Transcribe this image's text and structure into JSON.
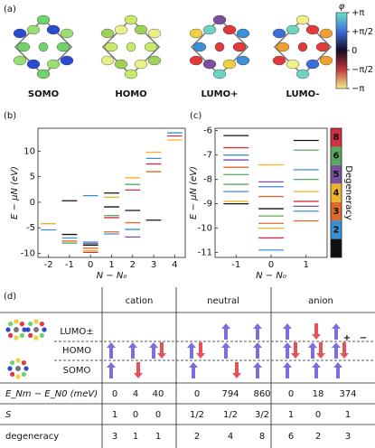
{
  "panel_labels": [
    "(a)",
    "(b)",
    "(c)",
    "(d)"
  ],
  "orbitals": [
    "SOMO",
    "HOMO",
    "LUMO+",
    "LUMO-"
  ],
  "colorbar": {
    "label": "φ",
    "ticks": [
      "+π",
      "+π/2",
      "0",
      "−π/2",
      "−π"
    ]
  },
  "chart_data": [
    {
      "type": "levels",
      "xlabel": "N − N₀",
      "ylabel": "E − μN (eV)",
      "xlim": [
        -2.5,
        4.5
      ],
      "xticks": [
        -2,
        -1,
        0,
        1,
        2,
        3,
        4
      ],
      "ylim": [
        -10.8,
        14.5
      ],
      "yticks": [
        -10,
        -5,
        0,
        5,
        10
      ],
      "series": [
        {
          "color": "#111111",
          "x": [
            -1,
            -1,
            0,
            1,
            1,
            2,
            3
          ],
          "values": [
            0.3,
            -6.3,
            -8.4,
            1.8,
            -0.9,
            -1.6,
            -3.5
          ]
        },
        {
          "color": "#3a8fd6",
          "x": [
            -2,
            -1,
            0,
            0,
            1,
            2,
            3,
            4
          ],
          "values": [
            -5.4,
            -7.0,
            -7.8,
            1.3,
            -6.2,
            -5.3,
            8.6,
            13.6
          ]
        },
        {
          "color": "#e0692a",
          "x": [
            -1,
            0,
            1,
            2,
            3
          ],
          "values": [
            -7.6,
            -9.0,
            -5.8,
            -4.0,
            6.0
          ]
        },
        {
          "color": "#f0b429",
          "x": [
            -2,
            0,
            1,
            2,
            3,
            4
          ],
          "values": [
            -4.2,
            -9.5,
            1.0,
            4.8,
            9.8,
            12.2
          ]
        },
        {
          "color": "#7b4fa0",
          "x": [
            0,
            2
          ],
          "values": [
            -8.1,
            -6.8
          ]
        },
        {
          "color": "#5aa860",
          "x": [
            -1,
            1,
            2
          ],
          "values": [
            -8.0,
            -2.6,
            3.5
          ]
        },
        {
          "color": "#d03040",
          "x": [
            0,
            1,
            2,
            3,
            4
          ],
          "values": [
            -9.8,
            -3.0,
            2.4,
            7.5,
            13.0
          ]
        }
      ]
    },
    {
      "type": "levels",
      "xlabel": "N − N₀",
      "ylabel": "E − μN (eV)",
      "legend_title": "Degeneracy",
      "xlim": [
        -1.6,
        1.6
      ],
      "xticks": [
        -1,
        0,
        1
      ],
      "ylim": [
        -11.2,
        -5.9
      ],
      "yticks": [
        -11,
        -10,
        -9,
        -8,
        -7,
        -6
      ],
      "series": [
        {
          "name": "1",
          "color": "#111111",
          "x": [
            -1,
            -1,
            0,
            1
          ],
          "values": [
            -6.2,
            -9.0,
            -9.2,
            -6.4
          ]
        },
        {
          "name": "2",
          "color": "#3a8fd6",
          "x": [
            -1,
            -1,
            0,
            0,
            1,
            1
          ],
          "values": [
            -7.0,
            -8.5,
            -10.9,
            -8.3,
            -7.6,
            -9.3
          ]
        },
        {
          "name": "3",
          "color": "#e0692a",
          "x": [
            -1,
            0,
            0,
            1
          ],
          "values": [
            -7.5,
            -9.8,
            -8.7,
            -9.7
          ]
        },
        {
          "name": "4",
          "color": "#f0b429",
          "x": [
            -1,
            0,
            0,
            1
          ],
          "values": [
            -8.9,
            -7.4,
            -10.0,
            -8.5
          ]
        },
        {
          "name": "5",
          "color": "#7b4fa0",
          "x": [
            -1,
            0,
            1
          ],
          "values": [
            -7.2,
            -8.1,
            -9.1
          ]
        },
        {
          "name": "6",
          "color": "#5aa860",
          "x": [
            -1,
            -1,
            0,
            1,
            1
          ],
          "values": [
            -7.8,
            -8.2,
            -9.5,
            -6.8,
            -8.0
          ]
        },
        {
          "name": "8",
          "color": "#d03040",
          "x": [
            -1,
            0,
            1
          ],
          "values": [
            -6.7,
            -10.4,
            -8.9
          ]
        }
      ]
    }
  ],
  "table": {
    "groups": [
      "cation",
      "neutral",
      "anion"
    ],
    "orbital_labels": [
      "LUMO±",
      "HOMO",
      "SOMO"
    ],
    "anion_signs": [
      "+",
      "−"
    ],
    "row_labels": [
      "E_Nm − E_N0 (meV)",
      "S",
      "degeneracy"
    ],
    "rows": [
      [
        0,
        4,
        40,
        0,
        794,
        860,
        0,
        18,
        374
      ],
      [
        "1",
        "0",
        "0",
        "1/2",
        "1/2",
        "3/2",
        "1",
        "0",
        "1"
      ],
      [
        3,
        1,
        1,
        2,
        4,
        8,
        6,
        2,
        3
      ]
    ]
  }
}
